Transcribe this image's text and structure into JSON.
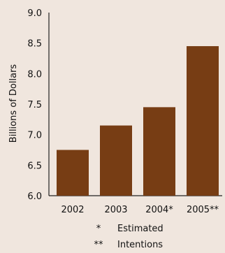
{
  "chart_data": {
    "type": "bar",
    "categories": [
      "2002",
      "2003",
      "2004*",
      "2005**"
    ],
    "values": [
      6.75,
      7.15,
      7.45,
      8.45
    ],
    "title": "",
    "xlabel": "",
    "ylabel": "Billions of Dollars",
    "ylim": [
      6.0,
      9.0
    ],
    "yticks": [
      "6.0",
      "6.5",
      "7.0",
      "7.5",
      "8.0",
      "8.5",
      "9.0"
    ],
    "grid": false,
    "bar_color": "#773d14",
    "background": "#f0e6de",
    "footnotes": [
      {
        "mark": "*",
        "text": "Estimated"
      },
      {
        "mark": "**",
        "text": "Intentions"
      }
    ]
  }
}
